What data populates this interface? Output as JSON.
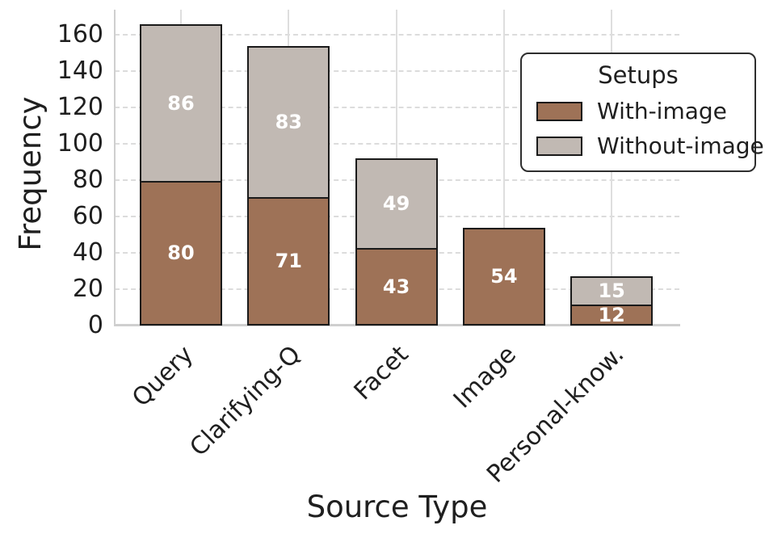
{
  "chart_data": {
    "type": "bar",
    "stacked": true,
    "title": "",
    "xlabel": "Source Type",
    "ylabel": "Frequency",
    "categories": [
      "Query",
      "Clarifying-Q",
      "Facet",
      "Image",
      "Personal-know."
    ],
    "series": [
      {
        "name": "With-image",
        "color": "#9e7257",
        "values": [
          80,
          71,
          43,
          54,
          12
        ]
      },
      {
        "name": "Without-image",
        "color": "#c1b9b3",
        "values": [
          86,
          83,
          49,
          0,
          15
        ]
      }
    ],
    "stack_totals": [
      166,
      154,
      92,
      54,
      27
    ],
    "yticks": [
      0,
      20,
      40,
      60,
      80,
      100,
      120,
      140,
      160
    ],
    "ylim": [
      0,
      174
    ],
    "grid": true,
    "legend": {
      "title": "Setups",
      "position": "upper-right",
      "entries": [
        "With-image",
        "Without-image"
      ]
    },
    "bar_edge_color": "#1a1a1a",
    "value_label_color": "#ffffff"
  }
}
